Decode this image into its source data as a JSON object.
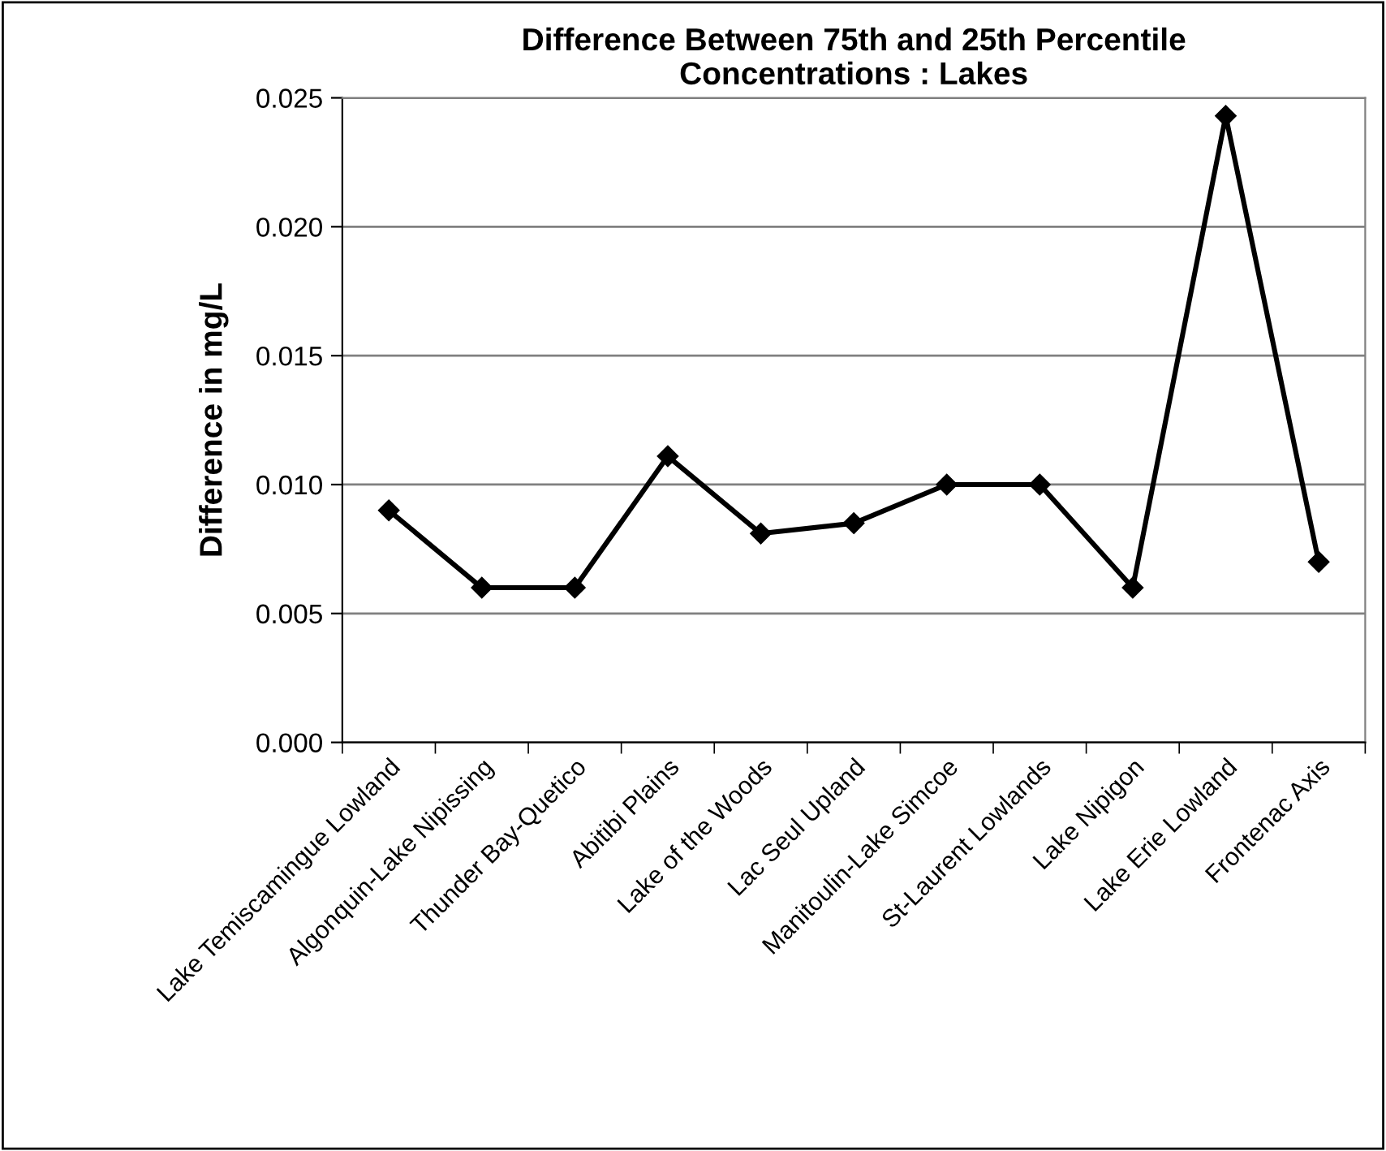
{
  "chart_data": {
    "type": "line",
    "title": "Difference Between 75th and 25th Percentile\nConcentrations : Lakes",
    "ylabel": "Difference in mg/L",
    "categories": [
      "Lake Temiscamingue Lowland",
      "Algonquin-Lake Nipissing",
      "Thunder Bay-Quetico",
      "Abitibi Plains",
      "Lake of the Woods",
      "Lac Seul Upland",
      "Manitoulin-Lake Simcoe",
      "St-Laurent Lowlands",
      "Lake Nipigon",
      "Lake Erie Lowland",
      "Frontenac Axis"
    ],
    "series": [
      {
        "color": "#000000",
        "values": [
          0.009,
          0.006,
          0.006,
          0.0111,
          0.0081,
          0.0085,
          0.01,
          0.01,
          0.006,
          0.0243,
          0.007
        ]
      }
    ],
    "ylim": [
      0,
      0.025
    ],
    "yticks": [
      {
        "value": 0,
        "label": "0.000"
      },
      {
        "value": 0.005,
        "label": "0.005"
      },
      {
        "value": 0.01,
        "label": "0.010"
      },
      {
        "value": 0.015,
        "label": "0.015"
      },
      {
        "value": 0.02,
        "label": "0.020"
      },
      {
        "value": 0.025,
        "label": "0.025"
      }
    ],
    "grid": "y",
    "marker": "diamond",
    "line_style": "solid",
    "legend": false
  }
}
